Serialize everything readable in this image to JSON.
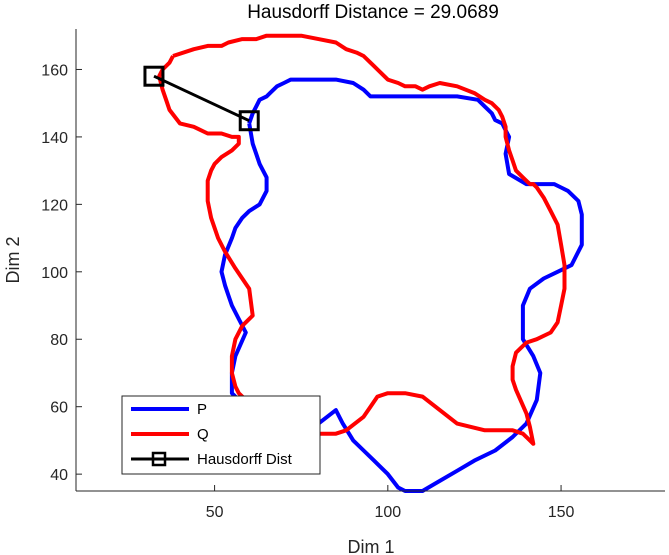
{
  "chart_data": {
    "type": "line",
    "title": "Hausdorff Distance = 29.0689",
    "xlabel": "Dim 1",
    "ylabel": "Dim 2",
    "xlim": [
      10,
      180
    ],
    "ylim": [
      35,
      172
    ],
    "xticks": [
      50,
      100,
      150
    ],
    "yticks": [
      40,
      60,
      80,
      100,
      120,
      140,
      160
    ],
    "grid": false,
    "legend_position": "bottom-left",
    "colors": {
      "P": "#0000ff",
      "Q": "#ff0000",
      "Hausdorff Dist": "#000000"
    },
    "series": [
      {
        "name": "P",
        "color": "#0000ff",
        "closed": true,
        "x": [
          60,
          61,
          62,
          63,
          65,
          66,
          67,
          68,
          70,
          72,
          76,
          80,
          85,
          90,
          93,
          95,
          100,
          110,
          120,
          126,
          128,
          130,
          131,
          133,
          134,
          135,
          134,
          135,
          140,
          145,
          148,
          150,
          152,
          155,
          156,
          156,
          153,
          149,
          145,
          141,
          139,
          139,
          139,
          142,
          144,
          143,
          140,
          136,
          131,
          125,
          120,
          115,
          110,
          105,
          103,
          100,
          96,
          93,
          90,
          87,
          85,
          80,
          70,
          65,
          60,
          57,
          55,
          55,
          56,
          59,
          57,
          55,
          54,
          53,
          52,
          53,
          55,
          56,
          58,
          60,
          63,
          65,
          65,
          63,
          62,
          61,
          60
        ],
        "y": [
          144,
          147,
          149,
          151,
          152,
          153,
          154,
          155,
          156,
          157,
          157,
          157,
          157,
          156,
          154,
          152,
          152,
          152,
          152,
          151,
          149,
          147,
          145,
          144,
          142,
          140,
          135,
          129,
          126,
          126,
          126,
          125,
          124,
          121,
          117,
          108,
          102,
          100,
          98,
          95,
          90,
          85,
          80,
          75,
          70,
          62,
          55,
          51,
          47,
          44,
          41,
          38,
          35,
          35,
          36,
          40,
          44,
          47,
          50,
          55,
          59,
          55,
          55,
          56,
          60,
          62,
          64,
          70,
          75,
          82,
          86,
          90,
          93,
          96,
          100,
          105,
          110,
          113,
          116,
          118,
          120,
          124,
          128,
          132,
          135,
          138,
          144
        ]
      },
      {
        "name": "Q",
        "color": "#ff0000",
        "closed": true,
        "x": [
          38,
          44,
          48,
          52,
          54,
          58,
          62,
          65,
          68,
          70,
          75,
          80,
          85,
          88,
          91,
          93,
          95,
          96,
          98,
          100,
          103,
          105,
          108,
          110,
          112,
          115,
          120,
          125,
          128,
          130,
          132,
          133,
          134,
          134,
          135,
          136,
          137,
          139,
          140,
          141,
          142,
          143,
          145,
          147,
          149,
          150,
          151,
          151,
          150,
          149,
          147,
          143,
          140,
          137,
          136,
          136,
          137,
          140,
          141,
          142,
          141,
          139,
          136,
          132,
          128,
          120,
          115,
          110,
          105,
          100,
          97,
          95,
          93,
          88,
          85,
          80,
          70,
          63,
          61,
          59,
          57,
          56,
          55,
          55,
          56,
          58,
          61,
          60,
          56,
          53,
          51,
          49,
          48,
          48,
          49,
          50,
          52,
          55,
          57,
          57,
          55,
          52,
          48,
          44,
          40,
          37,
          36,
          35,
          34,
          35,
          37,
          38
        ],
        "y": [
          164,
          166,
          167,
          167,
          168,
          169,
          169,
          170,
          170,
          170,
          170,
          169,
          168,
          166,
          165,
          164,
          162,
          161,
          159,
          157,
          156,
          155,
          155,
          154,
          155,
          156,
          155,
          153,
          151,
          150,
          148,
          146,
          143,
          140,
          136,
          133,
          130,
          128,
          127,
          126,
          126,
          125,
          122,
          118,
          114,
          108,
          102,
          95,
          90,
          85,
          82,
          80,
          79,
          76,
          72,
          68,
          65,
          58,
          54,
          49,
          50,
          52,
          53,
          53,
          53,
          55,
          59,
          63,
          64,
          64,
          63,
          60,
          57,
          53,
          52,
          52,
          53,
          55,
          58,
          62,
          64,
          66,
          70,
          75,
          80,
          84,
          87,
          95,
          101,
          106,
          110,
          116,
          121,
          127,
          130,
          132,
          134,
          136,
          138,
          140,
          140,
          141,
          141,
          143,
          144,
          148,
          151,
          154,
          158,
          160,
          162,
          164
        ]
      },
      {
        "name": "Hausdorff Dist",
        "color": "#000000",
        "marker": "square",
        "closed": false,
        "x": [
          32.5,
          60
        ],
        "y": [
          158,
          144.8
        ]
      }
    ]
  }
}
